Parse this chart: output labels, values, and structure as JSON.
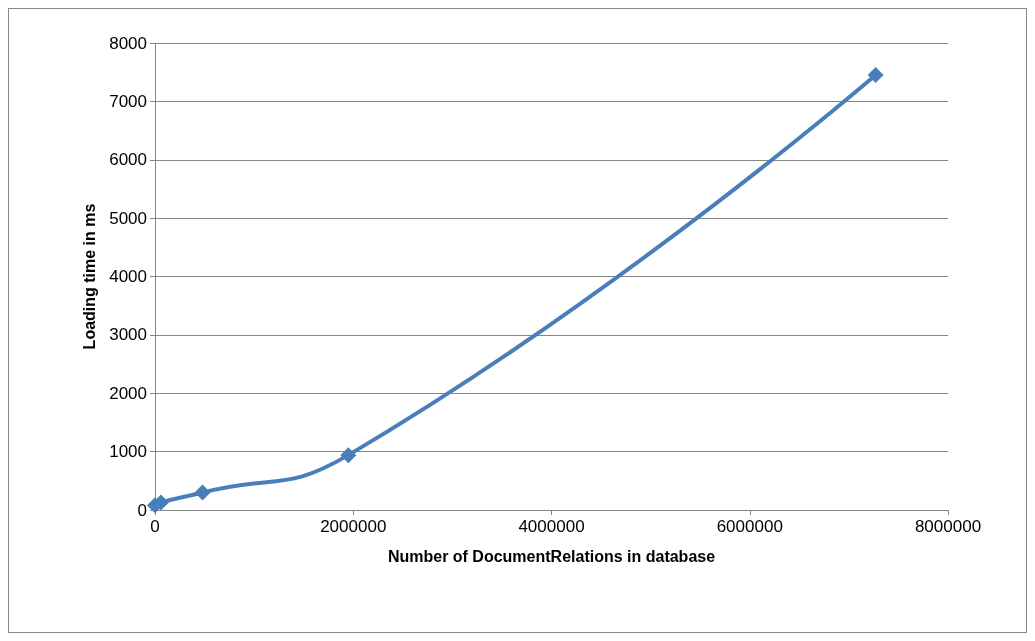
{
  "chart_data": {
    "type": "line",
    "xlabel": "Number of DocumentRelations in database",
    "ylabel": "Loading time in ms",
    "x": [
      0,
      60000,
      480000,
      1950000,
      7270000
    ],
    "series": [
      {
        "color": "#4a7ebb",
        "values": [
          80,
          130,
          300,
          940,
          7450
        ]
      }
    ],
    "xlim": [
      0,
      8000000
    ],
    "xticks": [
      0,
      2000000,
      4000000,
      6000000,
      8000000
    ],
    "ylim": [
      0,
      8000
    ],
    "yticks": [
      0,
      1000,
      2000,
      3000,
      4000,
      5000,
      6000,
      7000,
      8000
    ],
    "grid": "y",
    "marker": "diamond",
    "line_style": "solid"
  }
}
